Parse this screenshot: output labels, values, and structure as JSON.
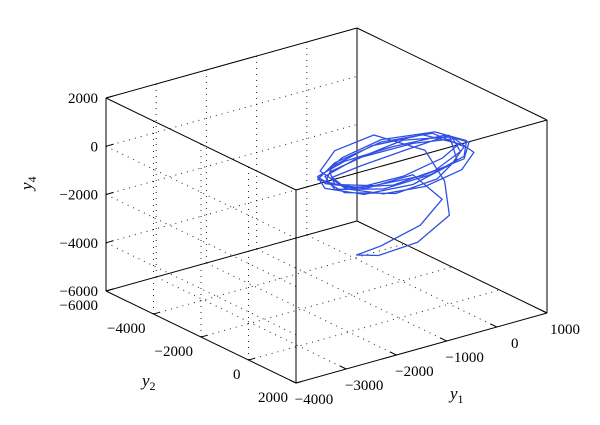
{
  "chart_data": {
    "type": "line",
    "projection": "3d",
    "title": "",
    "axes": {
      "y1": {
        "label": "y",
        "sub": "1",
        "range": [
          -4000,
          1000
        ],
        "ticks": [
          -4000,
          -3000,
          -2000,
          -1000,
          0,
          1000
        ]
      },
      "y2": {
        "label": "y",
        "sub": "2",
        "range": [
          -6000,
          2000
        ],
        "ticks": [
          -6000,
          -4000,
          -2000,
          0,
          2000
        ]
      },
      "y4": {
        "label": "y",
        "sub": "4",
        "range": [
          -6000,
          2000
        ],
        "ticks": [
          -6000,
          -4000,
          -2000,
          0,
          2000
        ]
      }
    },
    "tick_labels": {
      "y1": [
        "−4000",
        "−3000",
        "−2000",
        "−1000",
        "0",
        "1000"
      ],
      "y2": [
        "−6000",
        "−4000",
        "−2000",
        "0",
        "2000"
      ],
      "y4": [
        "−6000",
        "−4000",
        "−2000",
        "0",
        "2000"
      ]
    },
    "grid": true,
    "box": true,
    "series": [
      {
        "color": "#2f4fe3",
        "points": [
          [
            0,
            0,
            1000
          ],
          [
            -400,
            -800,
            300
          ],
          [
            -900,
            -1800,
            -600
          ],
          [
            -1200,
            -2400,
            -1200
          ],
          [
            -1000,
            -2200,
            -1700
          ],
          [
            -600,
            -1500,
            -1800
          ],
          [
            -200,
            -600,
            -1300
          ],
          [
            200,
            100,
            -500
          ],
          [
            300,
            400,
            300
          ],
          [
            100,
            0,
            800
          ],
          [
            -300,
            -900,
            400
          ],
          [
            -800,
            -2000,
            -400
          ],
          [
            -1150,
            -2600,
            -1100
          ],
          [
            -1100,
            -2500,
            -1600
          ],
          [
            -700,
            -1700,
            -1500
          ],
          [
            -200,
            -700,
            -900
          ],
          [
            200,
            200,
            0
          ],
          [
            250,
            300,
            700
          ],
          [
            0,
            -200,
            900
          ],
          [
            -500,
            -1300,
            200
          ],
          [
            -1000,
            -2300,
            -600
          ],
          [
            -1300,
            -2800,
            -1300
          ],
          [
            -1200,
            -2700,
            -1800
          ],
          [
            -800,
            -1900,
            -1900
          ],
          [
            -300,
            -900,
            -1300
          ],
          [
            100,
            -100,
            -300
          ],
          [
            200,
            200,
            500
          ],
          [
            -100,
            -500,
            900
          ],
          [
            -600,
            -1600,
            300
          ],
          [
            -1100,
            -2500,
            -700
          ],
          [
            -1250,
            -2900,
            -1500
          ],
          [
            -900,
            -2100,
            -1700
          ],
          [
            -400,
            -1100,
            -1000
          ],
          [
            0,
            -300,
            -100
          ],
          [
            150,
            100,
            600
          ],
          [
            -200,
            -700,
            800
          ],
          [
            -700,
            -1800,
            100
          ],
          [
            -1100,
            -2600,
            -900
          ],
          [
            -1200,
            -2700,
            -1600
          ],
          [
            -800,
            -1800,
            -1600
          ],
          [
            -300,
            -900,
            -900
          ],
          [
            0,
            -300,
            -1800
          ],
          [
            -200,
            -800,
            -3000
          ],
          [
            -600,
            -1600,
            -4000
          ],
          [
            -900,
            -2000,
            -4400
          ],
          [
            -700,
            -1500,
            -4300
          ],
          [
            -300,
            -700,
            -3600
          ],
          [
            50,
            -100,
            -2400
          ],
          [
            0,
            -200,
            -1000
          ],
          [
            -200,
            -600,
            200
          ],
          [
            -700,
            -1700,
            600
          ],
          [
            -1100,
            -2500,
            -200
          ],
          [
            -1250,
            -2800,
            -1100
          ],
          [
            -1000,
            -2300,
            -1700
          ],
          [
            -500,
            -1300,
            -1400
          ],
          [
            -100,
            -400,
            -600
          ],
          [
            150,
            150,
            300
          ],
          [
            50,
            0,
            900
          ],
          [
            -400,
            -1100,
            500
          ],
          [
            -900,
            -2100,
            -500
          ],
          [
            -1200,
            -2700,
            -1300
          ],
          [
            -1100,
            -2500,
            -1800
          ],
          [
            -600,
            -1500,
            -1600
          ],
          [
            -150,
            -500,
            -800
          ],
          [
            200,
            200,
            100
          ],
          [
            200,
            300,
            800
          ],
          [
            -100,
            -400,
            1000
          ],
          [
            -600,
            -1600,
            400
          ],
          [
            -1000,
            -2400,
            -500
          ],
          [
            -1250,
            -2850,
            -1400
          ],
          [
            -1000,
            -2300,
            -1900
          ],
          [
            -500,
            -1200,
            -1700
          ],
          [
            -100,
            -300,
            -900
          ],
          [
            100,
            100,
            0
          ],
          [
            0,
            0,
            1000
          ]
        ]
      }
    ]
  }
}
